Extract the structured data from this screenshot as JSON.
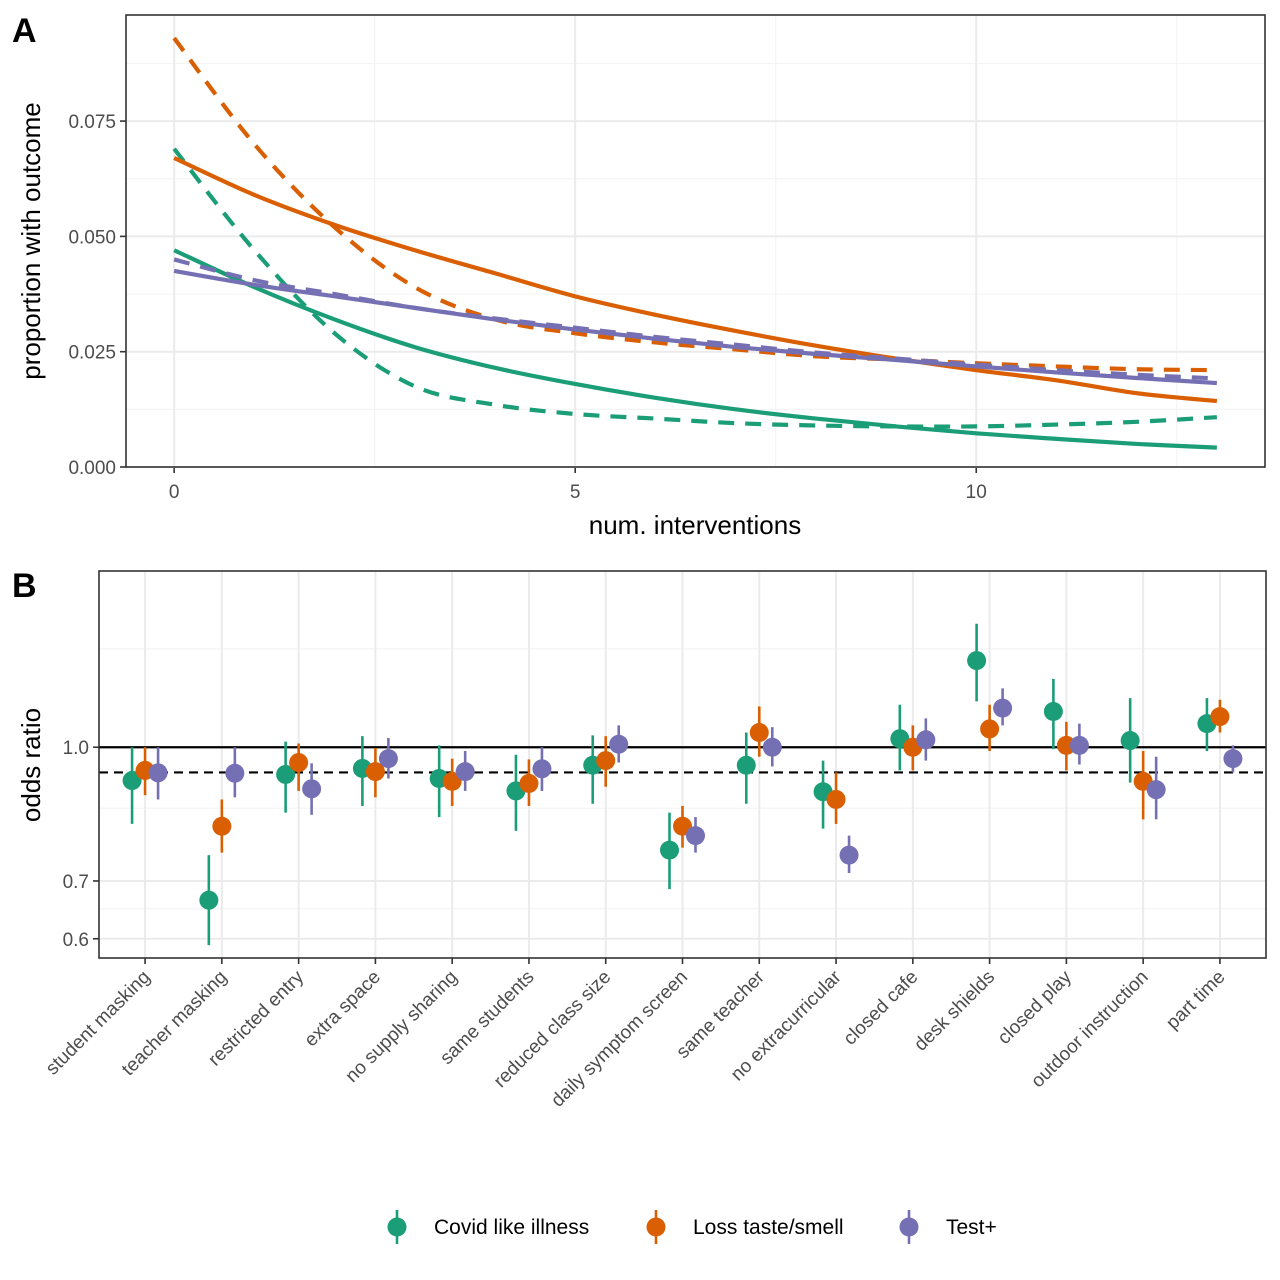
{
  "colors": {
    "covid": "#1b9e77",
    "loss": "#d95f02",
    "test": "#7570b3"
  },
  "legend": [
    {
      "key": "covid",
      "label": "Covid like illness"
    },
    {
      "key": "loss",
      "label": "Loss taste/smell"
    },
    {
      "key": "test",
      "label": "Test+"
    }
  ],
  "chart_data": [
    {
      "panel": "A",
      "type": "line",
      "xlabel": "num. interventions",
      "ylabel": "proportion with outcome",
      "xlim": [
        -0.6,
        13.6
      ],
      "ylim": [
        0,
        0.098
      ],
      "x_ticks": [
        0,
        5,
        10
      ],
      "y_ticks": [
        0.0,
        0.025,
        0.05,
        0.075
      ],
      "y_tick_labels": [
        "0.000",
        "0.025",
        "0.050",
        "0.075"
      ],
      "grid": true,
      "x": [
        0,
        1,
        2,
        3,
        4,
        5,
        6,
        7,
        8,
        9,
        10,
        11,
        12,
        13
      ],
      "series": [
        {
          "key": "covid",
          "style": "solid",
          "values": [
            0.047,
            0.039,
            0.032,
            0.026,
            0.0215,
            0.018,
            0.015,
            0.0125,
            0.0105,
            0.0088,
            0.0073,
            0.0061,
            0.005,
            0.0042
          ]
        },
        {
          "key": "covid",
          "style": "dashed",
          "values": [
            0.069,
            0.047,
            0.029,
            0.0175,
            0.0135,
            0.0115,
            0.0105,
            0.0095,
            0.009,
            0.0088,
            0.0088,
            0.0092,
            0.0098,
            0.0108
          ]
        },
        {
          "key": "loss",
          "style": "solid",
          "values": [
            0.067,
            0.059,
            0.0525,
            0.047,
            0.042,
            0.037,
            0.033,
            0.0295,
            0.0263,
            0.0235,
            0.021,
            0.0188,
            0.016,
            0.0143
          ]
        },
        {
          "key": "loss",
          "style": "dashed",
          "values": [
            0.093,
            0.07,
            0.052,
            0.039,
            0.032,
            0.029,
            0.027,
            0.0255,
            0.024,
            0.0233,
            0.0225,
            0.0218,
            0.0212,
            0.021
          ]
        },
        {
          "key": "test",
          "style": "solid",
          "values": [
            0.0425,
            0.0395,
            0.037,
            0.0345,
            0.032,
            0.0298,
            0.0278,
            0.026,
            0.0245,
            0.0232,
            0.0218,
            0.0205,
            0.0193,
            0.0182
          ]
        },
        {
          "key": "test",
          "style": "dashed",
          "values": [
            0.045,
            0.0405,
            0.0375,
            0.0345,
            0.0322,
            0.0302,
            0.0282,
            0.0265,
            0.0248,
            0.0235,
            0.0222,
            0.021,
            0.02,
            0.0192
          ]
        }
      ]
    },
    {
      "panel": "B",
      "type": "scatter",
      "ylabel": "odds ratio",
      "y_scale": "log",
      "ylim": [
        0.57,
        1.6
      ],
      "y_ticks": [
        0.6,
        0.7,
        1.0
      ],
      "y_tick_labels": [
        "0.6",
        "0.7",
        "1.0"
      ],
      "grid": true,
      "reference_lines": [
        {
          "value": 1.0,
          "style": "solid"
        },
        {
          "value": 0.935,
          "style": "dashed"
        }
      ],
      "categories": [
        "student masking",
        "teacher masking",
        "restricted entry",
        "extra space",
        "no supply sharing",
        "same students",
        "reduced class size",
        "daily symptom screen",
        "same teacher",
        "no extracurricular",
        "closed cafe",
        "desk shields",
        "closed play",
        "outdoor instruction",
        "part time"
      ],
      "series": [
        {
          "key": "covid",
          "values": [
            0.915,
            0.665,
            0.93,
            0.945,
            0.92,
            0.89,
            0.953,
            0.76,
            0.953,
            0.888,
            1.023,
            1.26,
            1.1,
            1.018,
            1.065
          ],
          "lower": [
            0.815,
            0.59,
            0.84,
            0.855,
            0.83,
            0.8,
            0.86,
            0.685,
            0.86,
            0.805,
            0.94,
            1.13,
            0.995,
            0.91,
            0.99
          ],
          "upper": [
            1.0,
            0.75,
            1.015,
            1.03,
            1.005,
            0.98,
            1.032,
            0.84,
            1.04,
            0.965,
            1.12,
            1.39,
            1.2,
            1.14,
            1.14
          ]
        },
        {
          "key": "loss",
          "values": [
            0.94,
            0.81,
            0.96,
            0.937,
            0.913,
            0.908,
            0.965,
            0.81,
            1.04,
            0.87,
            1.0,
            1.05,
            1.005,
            0.913,
            1.085
          ],
          "lower": [
            0.88,
            0.755,
            0.89,
            0.875,
            0.855,
            0.855,
            0.9,
            0.765,
            0.975,
            0.815,
            0.94,
            0.99,
            0.94,
            0.825,
            1.04
          ],
          "upper": [
            1.0,
            0.87,
            1.01,
            0.998,
            0.97,
            0.968,
            1.03,
            0.855,
            1.115,
            0.935,
            1.06,
            1.12,
            1.07,
            0.99,
            1.135
          ]
        },
        {
          "key": "test",
          "values": [
            0.934,
            0.933,
            0.895,
            0.97,
            0.937,
            0.944,
            1.008,
            0.79,
            1.0,
            0.75,
            1.02,
            1.11,
            1.005,
            0.893,
            0.97
          ],
          "lower": [
            0.87,
            0.875,
            0.835,
            0.92,
            0.89,
            0.89,
            0.96,
            0.755,
            0.95,
            0.715,
            0.965,
            1.06,
            0.955,
            0.825,
            0.935
          ],
          "upper": [
            1.0,
            1.0,
            0.958,
            1.025,
            0.99,
            1.0,
            1.06,
            0.83,
            1.055,
            0.79,
            1.08,
            1.17,
            1.065,
            0.975,
            1.005
          ]
        }
      ]
    }
  ]
}
